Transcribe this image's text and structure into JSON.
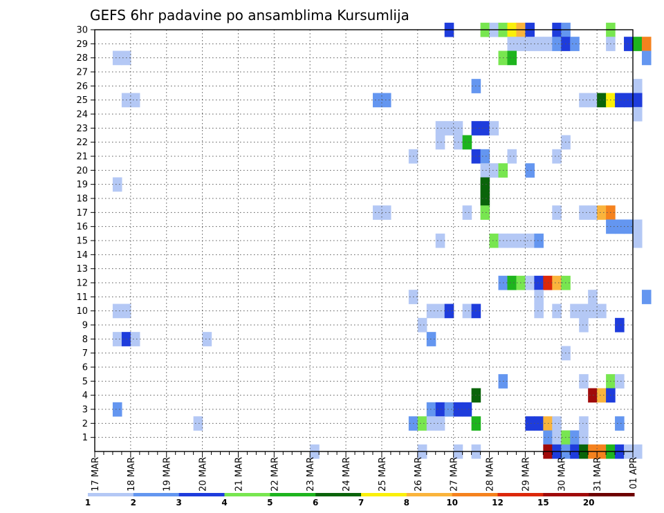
{
  "chart_data": {
    "type": "heatmap",
    "title": "GEFS 6hr padavine po ansamblima Kursumlija",
    "xlabel": "",
    "ylabel": "",
    "y_ticks": [
      "1",
      "2",
      "3",
      "4",
      "5",
      "6",
      "7",
      "8",
      "9",
      "10",
      "11",
      "12",
      "13",
      "14",
      "15",
      "16",
      "17",
      "18",
      "19",
      "20",
      "21",
      "22",
      "23",
      "24",
      "25",
      "26",
      "27",
      "28",
      "29",
      "30"
    ],
    "x_ticks": [
      "17 MAR",
      "18 MAR",
      "19 MAR",
      "20 MAR",
      "21 MAR",
      "22 MAR",
      "23 MAR",
      "24 MAR",
      "25 MAR",
      "26 MAR",
      "27 MAR",
      "28 MAR",
      "29 MAR",
      "30 MAR",
      "31 MAR",
      "01 APR"
    ],
    "x_steps_per_day": 4,
    "y_range": [
      0,
      30
    ],
    "legend": {
      "labels": [
        "1",
        "2",
        "3",
        "4",
        "5",
        "6",
        "7",
        "8",
        "10",
        "12",
        "15",
        "20"
      ],
      "colors": [
        "#b4c8f5",
        "#6496f0",
        "#1e3cdc",
        "#78e650",
        "#1eb41e",
        "#0a640a",
        "#faf00a",
        "#fab43c",
        "#f5821e",
        "#dc280a",
        "#a00a0a",
        "#6e0000"
      ],
      "trailing_color": "#6e0000"
    },
    "cells": [
      {
        "m": 30,
        "x": [
          [
            39,
            3
          ]
        ]
      },
      {
        "m": 30,
        "x": [
          [
            43,
            4
          ],
          [
            44,
            1
          ],
          [
            45,
            4
          ],
          [
            46,
            7
          ],
          [
            47,
            8
          ],
          [
            48,
            3
          ],
          [
            51,
            3
          ],
          [
            52,
            2
          ],
          [
            57,
            4
          ]
        ]
      },
      {
        "m": 29,
        "x": [
          [
            46,
            1
          ],
          [
            47,
            1
          ],
          [
            48,
            1
          ],
          [
            49,
            1
          ],
          [
            50,
            1
          ],
          [
            51,
            2
          ],
          [
            52,
            3
          ],
          [
            53,
            2
          ],
          [
            57,
            1
          ],
          [
            59,
            3
          ],
          [
            60,
            5
          ],
          [
            61,
            9
          ]
        ]
      },
      {
        "m": 28,
        "x": [
          [
            2,
            1
          ],
          [
            3,
            1
          ],
          [
            45,
            4
          ],
          [
            46,
            5
          ],
          [
            61,
            2
          ]
        ]
      },
      {
        "m": 26,
        "x": [
          [
            42,
            2
          ],
          [
            60,
            1
          ]
        ]
      },
      {
        "m": 25,
        "x": [
          [
            3,
            1
          ],
          [
            4,
            1
          ],
          [
            31,
            2
          ],
          [
            32,
            2
          ],
          [
            54,
            1
          ],
          [
            55,
            1
          ],
          [
            56,
            6
          ],
          [
            57,
            7
          ],
          [
            58,
            3
          ],
          [
            59,
            3
          ],
          [
            60,
            3
          ]
        ]
      },
      {
        "m": 24,
        "x": [
          [
            60,
            1
          ]
        ]
      },
      {
        "m": 23,
        "x": [
          [
            38,
            1
          ],
          [
            39,
            1
          ],
          [
            40,
            1
          ],
          [
            42,
            3
          ],
          [
            43,
            3
          ],
          [
            44,
            1
          ]
        ]
      },
      {
        "m": 22,
        "x": [
          [
            38,
            1
          ],
          [
            40,
            1
          ],
          [
            41,
            5
          ],
          [
            52,
            1
          ]
        ]
      },
      {
        "m": 21,
        "x": [
          [
            35,
            1
          ],
          [
            42,
            3
          ],
          [
            43,
            2
          ],
          [
            46,
            1
          ],
          [
            51,
            1
          ]
        ]
      },
      {
        "m": 20,
        "x": [
          [
            43,
            1
          ],
          [
            44,
            1
          ],
          [
            45,
            4
          ],
          [
            48,
            2
          ]
        ]
      },
      {
        "m": 19,
        "x": [
          [
            2,
            1
          ],
          [
            43,
            6
          ]
        ]
      },
      {
        "m": 18,
        "x": [
          [
            43,
            6
          ]
        ]
      },
      {
        "m": 17,
        "x": [
          [
            31,
            1
          ],
          [
            32,
            1
          ],
          [
            41,
            1
          ],
          [
            43,
            4
          ],
          [
            51,
            1
          ],
          [
            54,
            1
          ],
          [
            55,
            1
          ],
          [
            56,
            8
          ],
          [
            57,
            9
          ]
        ]
      },
      {
        "m": 16,
        "x": [
          [
            57,
            2
          ],
          [
            58,
            2
          ],
          [
            59,
            2
          ],
          [
            60,
            1
          ]
        ]
      },
      {
        "m": 15,
        "x": [
          [
            38,
            1
          ],
          [
            44,
            4
          ],
          [
            45,
            1
          ],
          [
            46,
            1
          ],
          [
            47,
            1
          ],
          [
            48,
            1
          ],
          [
            49,
            2
          ],
          [
            60,
            1
          ]
        ]
      },
      {
        "m": 12,
        "x": [
          [
            45,
            2
          ],
          [
            46,
            5
          ],
          [
            47,
            4
          ],
          [
            48,
            1
          ],
          [
            49,
            3
          ],
          [
            50,
            10
          ],
          [
            51,
            8
          ],
          [
            52,
            4
          ]
        ]
      },
      {
        "m": 11,
        "x": [
          [
            35,
            1
          ],
          [
            49,
            1
          ],
          [
            55,
            1
          ],
          [
            61,
            2
          ]
        ]
      },
      {
        "m": 10,
        "x": [
          [
            2,
            1
          ],
          [
            3,
            1
          ],
          [
            37,
            1
          ],
          [
            38,
            1
          ],
          [
            39,
            3
          ],
          [
            41,
            1
          ],
          [
            42,
            3
          ],
          [
            49,
            1
          ],
          [
            51,
            1
          ],
          [
            53,
            1
          ],
          [
            54,
            1
          ],
          [
            55,
            1
          ],
          [
            56,
            1
          ]
        ]
      },
      {
        "m": 9,
        "x": [
          [
            36,
            1
          ],
          [
            54,
            1
          ],
          [
            58,
            3
          ]
        ]
      },
      {
        "m": 8,
        "x": [
          [
            2,
            1
          ],
          [
            3,
            3
          ],
          [
            4,
            1
          ],
          [
            12,
            1
          ],
          [
            37,
            2
          ]
        ]
      },
      {
        "m": 7,
        "x": [
          [
            52,
            1
          ]
        ]
      },
      {
        "m": 5,
        "x": [
          [
            45,
            2
          ],
          [
            54,
            1
          ],
          [
            57,
            4
          ],
          [
            58,
            1
          ]
        ]
      },
      {
        "m": 4,
        "x": [
          [
            42,
            6
          ],
          [
            55,
            11
          ],
          [
            56,
            8
          ],
          [
            57,
            3
          ]
        ]
      },
      {
        "m": 3,
        "x": [
          [
            2,
            2
          ],
          [
            37,
            2
          ],
          [
            38,
            3
          ],
          [
            39,
            2
          ],
          [
            40,
            3
          ],
          [
            41,
            3
          ]
        ]
      },
      {
        "m": 2,
        "x": [
          [
            11,
            1
          ],
          [
            35,
            2
          ],
          [
            36,
            4
          ],
          [
            37,
            1
          ],
          [
            38,
            1
          ],
          [
            42,
            5
          ],
          [
            48,
            3
          ],
          [
            49,
            3
          ],
          [
            50,
            8
          ],
          [
            51,
            1
          ],
          [
            54,
            1
          ],
          [
            58,
            2
          ]
        ]
      },
      {
        "m": 1,
        "x": [
          [
            50,
            2
          ],
          [
            51,
            1
          ],
          [
            52,
            4
          ],
          [
            53,
            2
          ],
          [
            54,
            1
          ]
        ]
      },
      {
        "m": 0,
        "x": [
          [
            24,
            1
          ],
          [
            36,
            1
          ],
          [
            40,
            1
          ],
          [
            42,
            1
          ],
          [
            50,
            11
          ],
          [
            51,
            3
          ],
          [
            52,
            2
          ],
          [
            53,
            3
          ],
          [
            54,
            6
          ],
          [
            55,
            9
          ],
          [
            56,
            9
          ],
          [
            57,
            5
          ],
          [
            58,
            3
          ],
          [
            59,
            1
          ],
          [
            60,
            1
          ]
        ]
      }
    ]
  }
}
